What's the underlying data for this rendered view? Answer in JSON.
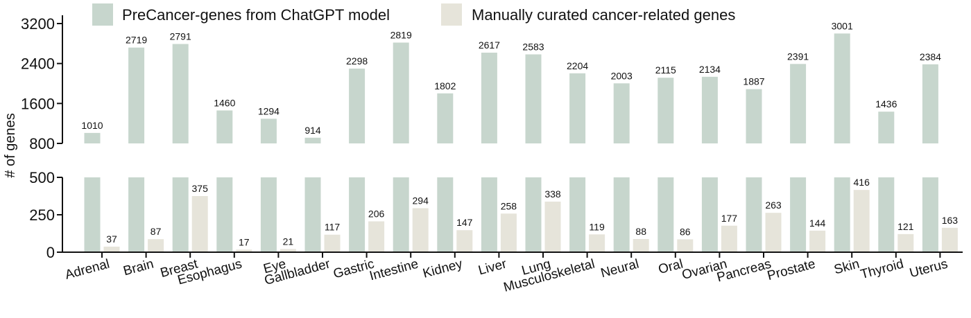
{
  "chart_data": {
    "type": "bar",
    "ylabel": "# of genes",
    "categories": [
      "Adrenal",
      "Brain",
      "Breast",
      "Esophagus",
      "Eye",
      "Gallbladder",
      "Gastric",
      "Intestine",
      "Kidney",
      "Liver",
      "Lung",
      "Musculoskeletal",
      "Neural",
      "Oral",
      "Ovarian",
      "Pancreas",
      "Prostate",
      "Skin",
      "Thyroid",
      "Uterus"
    ],
    "series": [
      {
        "name": "PreCancer-genes from ChatGPT model",
        "color": "#c7d6cd",
        "values": [
          1010,
          2719,
          2791,
          1460,
          1294,
          914,
          2298,
          2819,
          1802,
          2617,
          2583,
          2204,
          2003,
          2115,
          2134,
          1887,
          2391,
          3001,
          1436,
          2384
        ]
      },
      {
        "name": "Manually curated cancer-related genes",
        "color": "#e6e4da",
        "values": [
          37,
          87,
          375,
          17,
          21,
          117,
          206,
          294,
          147,
          258,
          338,
          119,
          88,
          86,
          177,
          263,
          144,
          416,
          121,
          163
        ]
      }
    ],
    "broken_y_axis": {
      "upper_segment": {
        "ylim": [
          800,
          3200
        ],
        "ticks": [
          "800",
          "1600",
          "2400",
          "3200"
        ]
      },
      "lower_segment": {
        "ylim": [
          0,
          500
        ],
        "ticks": [
          "0",
          "250",
          "500"
        ]
      }
    },
    "legend_position": "top",
    "grid": false
  }
}
